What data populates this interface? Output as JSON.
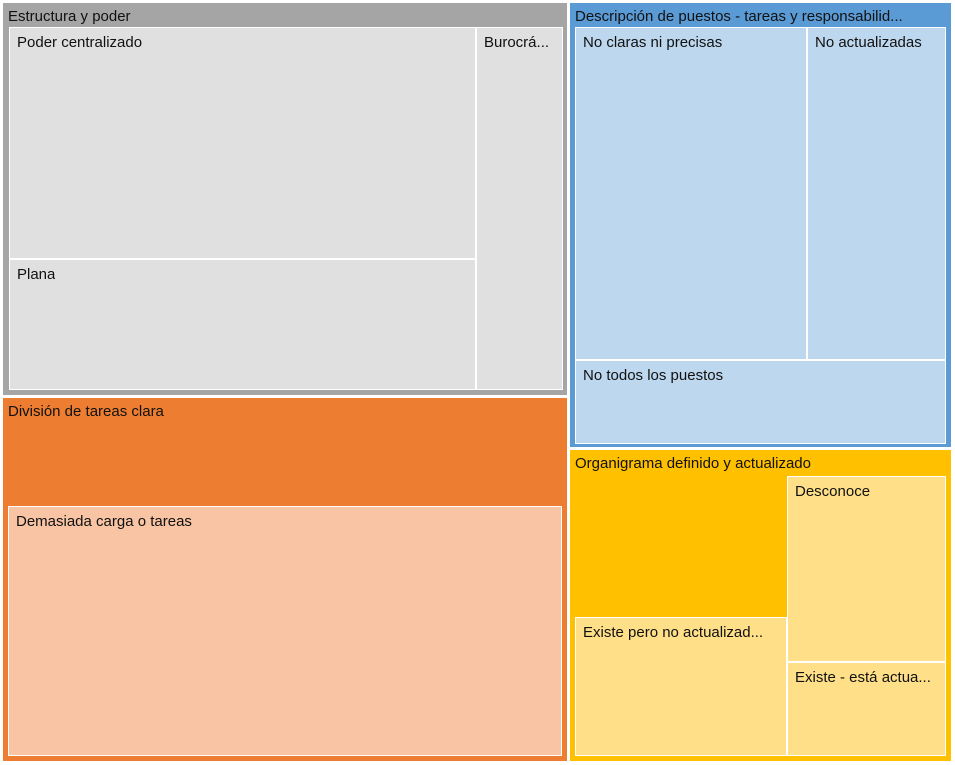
{
  "chart_data": {
    "type": "treemap",
    "groups": [
      {
        "name": "Estructura y poder",
        "color": "#a5a5a5",
        "leaf_color": "#e0e0e0",
        "children": [
          {
            "name": "Poder centralizado"
          },
          {
            "name": "Plana"
          },
          {
            "name": "Burocrá..."
          }
        ]
      },
      {
        "name": "Descripción de puestos - tareas y responsabilid...",
        "color": "#5b9bd5",
        "leaf_color": "#bdd7ee",
        "children": [
          {
            "name": "No claras ni precisas"
          },
          {
            "name": "No actualizadas"
          },
          {
            "name": "No todos los puestos"
          }
        ]
      },
      {
        "name": "División de tareas clara",
        "color": "#ed7d31",
        "leaf_color": "#f8c4a4",
        "children": [
          {
            "name": "Demasiada carga o tareas"
          }
        ]
      },
      {
        "name": "Organigrama definido y actualizado",
        "color": "#ffc000",
        "leaf_color": "#ffdf88",
        "children": [
          {
            "name": "Existe pero no actualizad..."
          },
          {
            "name": "Desconoce"
          },
          {
            "name": "Existe - está actua..."
          }
        ]
      }
    ]
  }
}
